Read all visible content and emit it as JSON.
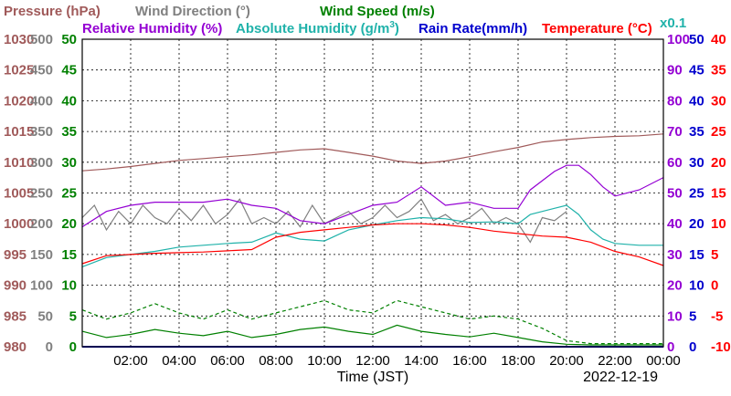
{
  "chart_data": {
    "type": "line",
    "date": "2022-12-19",
    "xlabel": "Time (JST)",
    "x_ticks": [
      "02:00",
      "04:00",
      "06:00",
      "08:00",
      "10:00",
      "12:00",
      "14:00",
      "16:00",
      "18:00",
      "20:00",
      "22:00",
      "00:00"
    ],
    "x_range_hours": [
      0,
      24
    ],
    "grid": true,
    "legend_placement": "top",
    "axes": {
      "pressure": {
        "label_text": "Pressure (hPa)",
        "color": "#a05a5a",
        "range": [
          980,
          1030
        ],
        "ticks": [
          "980",
          "985",
          "990",
          "995",
          "1000",
          "1005",
          "1010",
          "1015",
          "1020",
          "1025",
          "1030"
        ]
      },
      "wind_direction": {
        "label_text": "Wind Direction (°)",
        "color": "#808080",
        "range": [
          0,
          500
        ],
        "ticks": [
          "0",
          "50",
          "100",
          "150",
          "200",
          "250",
          "300",
          "350",
          "400",
          "450",
          "500"
        ]
      },
      "wind_speed": {
        "label_text": "Wind Speed (m/s)",
        "color": "#008000",
        "range": [
          0,
          50
        ],
        "ticks": [
          "0",
          "5",
          "10",
          "15",
          "20",
          "25",
          "30",
          "35",
          "40",
          "45",
          "50"
        ]
      },
      "relative_humidity": {
        "label_text": "Relative Humidity (%)",
        "color": "#9400d3",
        "range": [
          0,
          100
        ],
        "ticks": [
          "0",
          "10",
          "20",
          "30",
          "40",
          "50",
          "60",
          "70",
          "80",
          "90",
          "100"
        ]
      },
      "absolute_humidity": {
        "label_text": "Absolute Humidity (g/m",
        "sup": "3",
        "close": ")",
        "color": "#20b2aa",
        "range": [
          0,
          50
        ],
        "scale_note": "x0.1"
      },
      "rain_rate": {
        "label_text": "Rain Rate(mm/h)",
        "color": "#0000cd",
        "range": [
          0,
          50
        ],
        "ticks": [
          "0",
          "5",
          "10",
          "15",
          "20",
          "25",
          "30",
          "35",
          "40",
          "45",
          "50"
        ]
      },
      "temperature": {
        "label_text": "Temperature (°C)",
        "color": "#ff0000",
        "range": [
          -10,
          40
        ],
        "ticks": [
          "-10",
          "-5",
          "0",
          "5",
          "10",
          "15",
          "20",
          "25",
          "30",
          "35",
          "40"
        ]
      }
    },
    "series": [
      {
        "name": "Pressure (hPa)",
        "axis": "pressure",
        "color": "#a05a5a",
        "x": [
          0,
          1,
          2,
          3,
          4,
          5,
          6,
          7,
          8,
          9,
          10,
          11,
          12,
          13,
          14,
          15,
          16,
          17,
          18,
          19,
          20,
          21,
          22,
          23,
          24
        ],
        "y": [
          1008.6,
          1008.9,
          1009.3,
          1009.8,
          1010.3,
          1010.6,
          1010.9,
          1011.2,
          1011.6,
          1012.0,
          1012.2,
          1011.6,
          1011.0,
          1010.2,
          1009.8,
          1010.2,
          1010.9,
          1011.7,
          1012.4,
          1013.3,
          1013.7,
          1014.0,
          1014.2,
          1014.3,
          1014.6
        ]
      },
      {
        "name": "Wind Direction (°)",
        "axis": "wind_direction",
        "color": "#808080",
        "x": [
          0,
          0.5,
          1,
          1.5,
          2,
          2.5,
          3,
          3.5,
          4,
          4.5,
          5,
          5.5,
          6,
          6.5,
          7,
          7.5,
          8,
          8.5,
          9,
          9.5,
          10,
          10.5,
          11,
          11.5,
          12,
          12.5,
          13,
          13.5,
          14,
          14.5,
          15,
          15.5,
          16,
          16.5,
          17,
          17.5,
          18,
          18.5,
          19,
          19.5,
          20
        ],
        "y": [
          210,
          230,
          190,
          220,
          200,
          230,
          210,
          200,
          225,
          205,
          230,
          200,
          215,
          240,
          200,
          210,
          200,
          220,
          195,
          230,
          200,
          210,
          220,
          200,
          210,
          230,
          210,
          220,
          240,
          205,
          215,
          200,
          210,
          225,
          200,
          210,
          200,
          170,
          210,
          205,
          220
        ]
      },
      {
        "name": "Wind Speed (m/s)",
        "axis": "wind_speed",
        "color": "#008000",
        "x": [
          0,
          1,
          2,
          3,
          4,
          5,
          6,
          7,
          8,
          9,
          10,
          11,
          12,
          13,
          14,
          15,
          16,
          17,
          18,
          19,
          20,
          21,
          22,
          23,
          24
        ],
        "y": [
          2.5,
          1.5,
          2.0,
          2.8,
          2.2,
          1.8,
          2.5,
          1.5,
          2.0,
          2.8,
          3.2,
          2.5,
          2.0,
          3.5,
          2.5,
          2.0,
          1.6,
          2.2,
          1.5,
          0.8,
          0.4,
          0.3,
          0.3,
          0.3,
          0.3
        ]
      },
      {
        "name": "Wind Speed gust (m/s)",
        "axis": "wind_speed",
        "color": "#008000",
        "dashed": true,
        "x": [
          0,
          1,
          2,
          3,
          4,
          5,
          6,
          7,
          8,
          9,
          10,
          11,
          12,
          13,
          14,
          15,
          16,
          17,
          18,
          19,
          20,
          21,
          22,
          23,
          24
        ],
        "y": [
          6.0,
          4.5,
          5.5,
          7.0,
          5.5,
          4.5,
          6.0,
          4.5,
          5.5,
          6.5,
          7.5,
          6.0,
          5.5,
          7.5,
          6.5,
          5.5,
          4.5,
          5.0,
          4.5,
          3.0,
          1.0,
          0.5,
          0.5,
          0.5,
          0.5
        ]
      },
      {
        "name": "Relative Humidity (%)",
        "axis": "relative_humidity",
        "color": "#9400d3",
        "x": [
          0,
          1,
          2,
          3,
          4,
          5,
          6,
          7,
          8,
          9,
          10,
          11,
          12,
          13,
          14,
          15,
          16,
          17,
          18,
          18.5,
          19,
          19.5,
          20,
          20.5,
          21,
          21.5,
          22,
          23,
          24
        ],
        "y": [
          39,
          44,
          46,
          47,
          47,
          47,
          48,
          46,
          45,
          41,
          40,
          43,
          46,
          47,
          52,
          46,
          47,
          45,
          45,
          51,
          54,
          57,
          59,
          59,
          56,
          52,
          49,
          51,
          55
        ]
      },
      {
        "name": "Absolute Humidity (g/m3)",
        "axis": "absolute_humidity",
        "color": "#20b2aa",
        "x": [
          0,
          1,
          2,
          3,
          4,
          5,
          6,
          7,
          8,
          9,
          10,
          11,
          12,
          13,
          14,
          15,
          16,
          17,
          18,
          18.5,
          19,
          19.5,
          20,
          20.5,
          21,
          21.5,
          22,
          23,
          24
        ],
        "y": [
          13.0,
          14.5,
          15.0,
          15.5,
          16.2,
          16.5,
          16.8,
          17.0,
          18.5,
          17.5,
          17.2,
          19.0,
          19.8,
          20.5,
          21.0,
          20.8,
          20.2,
          20.3,
          20.0,
          21.5,
          22.0,
          22.5,
          23.0,
          21.5,
          19.0,
          17.5,
          16.8,
          16.5,
          16.5
        ]
      },
      {
        "name": "Rain Rate(mm/h)",
        "axis": "rain_rate",
        "color": "#0000cd",
        "x": [
          0,
          24
        ],
        "y": [
          0,
          0
        ]
      },
      {
        "name": "Temperature (°C)",
        "axis": "temperature",
        "color": "#ff0000",
        "x": [
          0,
          1,
          2,
          3,
          4,
          5,
          6,
          7,
          8,
          9,
          10,
          11,
          12,
          13,
          14,
          15,
          16,
          17,
          18,
          19,
          20,
          21,
          22,
          23,
          24
        ],
        "y": [
          3.5,
          4.8,
          5.0,
          5.2,
          5.3,
          5.4,
          5.6,
          5.8,
          7.8,
          8.6,
          9.0,
          9.4,
          9.8,
          10.0,
          10.0,
          9.8,
          9.4,
          8.8,
          8.4,
          8.0,
          7.8,
          7.0,
          5.5,
          4.6,
          3.2
        ]
      }
    ]
  }
}
